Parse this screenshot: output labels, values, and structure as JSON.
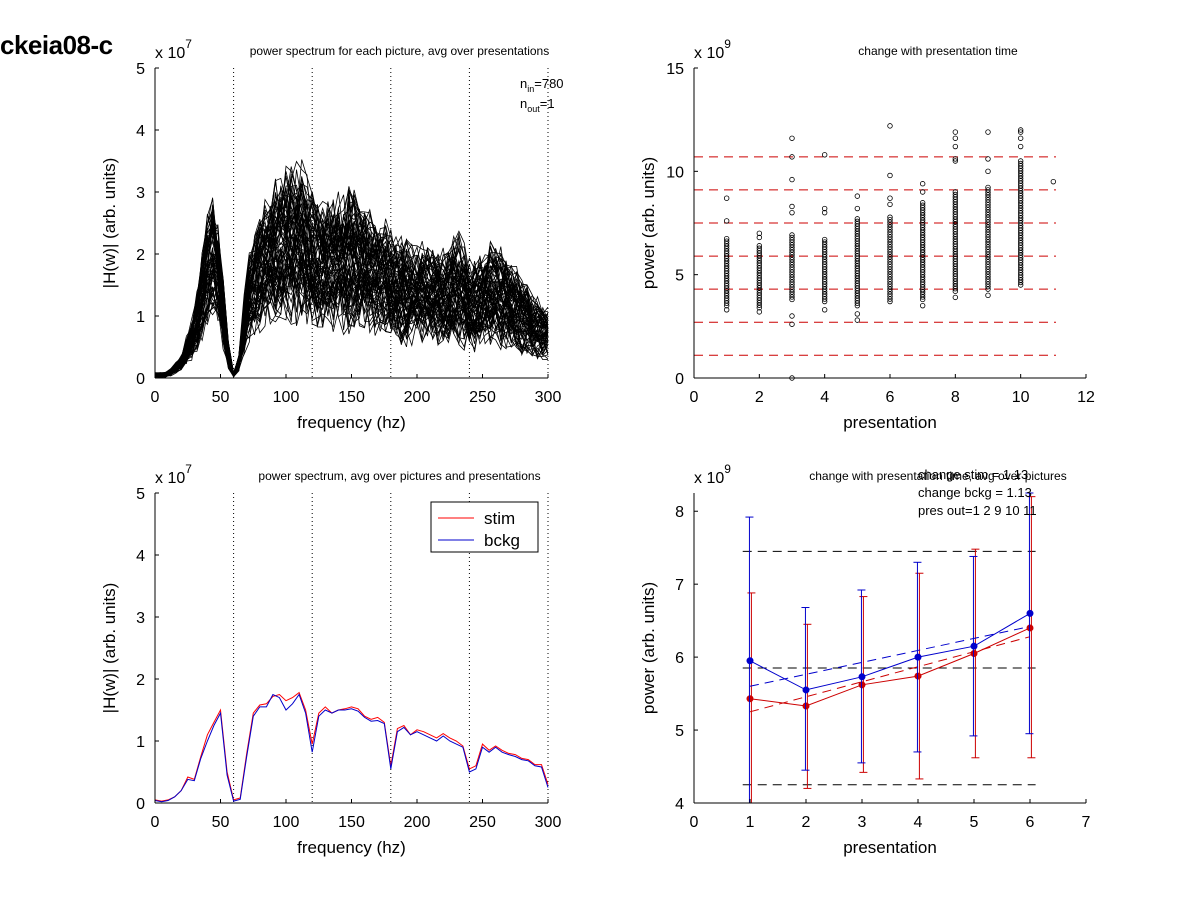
{
  "page_label": "ckeia08-c",
  "chart_data": [
    {
      "id": "p1",
      "type": "line",
      "title": "power spectrum for each picture, avg over presentations",
      "xlabel": "frequency (hz)",
      "ylabel": "|H(w)| (arb. units)",
      "exponent_label": "x 10",
      "exponent": "7",
      "xlim": [
        0,
        300
      ],
      "ylim": [
        0,
        5
      ],
      "xticks": [
        0,
        50,
        100,
        150,
        200,
        250,
        300
      ],
      "yticks": [
        0,
        1,
        2,
        3,
        4,
        5
      ],
      "vlines": [
        60,
        120,
        180,
        240,
        300
      ],
      "annotations": [
        {
          "main": "n",
          "sub": "in",
          "rest": "=780"
        },
        {
          "main": "n",
          "sub": "out",
          "rest": "=1"
        }
      ],
      "envelope": {
        "x": [
          0,
          10,
          20,
          30,
          40,
          45,
          50,
          55,
          60,
          65,
          70,
          80,
          90,
          100,
          110,
          120,
          130,
          140,
          150,
          160,
          170,
          180,
          190,
          200,
          210,
          220,
          230,
          240,
          250,
          260,
          270,
          280,
          290,
          300
        ],
        "upper": [
          0.1,
          0.1,
          0.4,
          1.2,
          2.8,
          3.2,
          2.4,
          0.8,
          0.1,
          0.5,
          2.0,
          2.9,
          3.3,
          3.6,
          3.9,
          3.3,
          3.0,
          3.2,
          3.4,
          3.0,
          2.8,
          2.6,
          2.4,
          2.3,
          2.3,
          2.2,
          2.6,
          2.1,
          2.2,
          2.4,
          2.0,
          1.8,
          1.4,
          1.2
        ],
        "lower": [
          0.0,
          0.0,
          0.1,
          0.2,
          0.6,
          0.8,
          0.5,
          0.1,
          0.0,
          0.1,
          0.4,
          0.5,
          0.7,
          0.6,
          0.5,
          0.3,
          0.5,
          0.5,
          0.4,
          0.5,
          0.5,
          0.4,
          0.3,
          0.4,
          0.4,
          0.3,
          0.3,
          0.2,
          0.3,
          0.3,
          0.3,
          0.2,
          0.2,
          0.2
        ]
      }
    },
    {
      "id": "p2",
      "type": "scatter",
      "title": "change with presentation time",
      "xlabel": "presentation",
      "ylabel": "power (arb. units)",
      "exponent_label": "x 10",
      "exponent": "9",
      "xlim": [
        0,
        12
      ],
      "ylim": [
        0,
        15
      ],
      "xticks": [
        0,
        2,
        4,
        6,
        8,
        10,
        12
      ],
      "yticks": [
        0,
        5,
        10,
        15
      ],
      "hlines": [
        1.1,
        2.7,
        4.3,
        5.9,
        7.5,
        9.1,
        10.7
      ],
      "columns": [
        {
          "x": 1,
          "lo": 3.5,
          "hi": 6.8,
          "outliers": [
            3.3,
            7.6,
            8.7
          ]
        },
        {
          "x": 2,
          "lo": 3.4,
          "hi": 6.5,
          "outliers": [
            3.2,
            6.8,
            7.0
          ]
        },
        {
          "x": 3,
          "lo": 3.8,
          "hi": 7.0,
          "outliers": [
            0.0,
            2.6,
            3.0,
            8.0,
            8.3,
            9.6,
            10.7,
            11.6
          ]
        },
        {
          "x": 4,
          "lo": 3.7,
          "hi": 6.8,
          "outliers": [
            3.3,
            8.0,
            8.2,
            10.8
          ]
        },
        {
          "x": 5,
          "lo": 3.5,
          "hi": 7.8,
          "outliers": [
            2.8,
            3.1,
            8.2,
            8.8
          ]
        },
        {
          "x": 6,
          "lo": 3.7,
          "hi": 7.8,
          "outliers": [
            8.4,
            8.7,
            9.8,
            12.2
          ]
        },
        {
          "x": 7,
          "lo": 3.8,
          "hi": 8.5,
          "outliers": [
            3.5,
            9.0,
            9.4
          ]
        },
        {
          "x": 8,
          "lo": 4.2,
          "hi": 9.0,
          "outliers": [
            3.9,
            10.5,
            10.6,
            11.2,
            11.6,
            11.9
          ]
        },
        {
          "x": 9,
          "lo": 4.3,
          "hi": 9.3,
          "outliers": [
            4.0,
            10.0,
            10.6,
            11.9
          ]
        },
        {
          "x": 10,
          "lo": 4.5,
          "hi": 10.5,
          "outliers": [
            11.2,
            11.6,
            11.9,
            12.0
          ]
        },
        {
          "x": 11,
          "lo": 9.5,
          "hi": 9.5,
          "outliers": []
        }
      ]
    },
    {
      "id": "p3",
      "type": "line",
      "title": "power spectrum, avg over pictures and presentations",
      "xlabel": "frequency (hz)",
      "ylabel": "|H(w)| (arb. units)",
      "exponent_label": "x 10",
      "exponent": "7",
      "xlim": [
        0,
        300
      ],
      "ylim": [
        0,
        5
      ],
      "xticks": [
        0,
        50,
        100,
        150,
        200,
        250,
        300
      ],
      "yticks": [
        0,
        1,
        2,
        3,
        4,
        5
      ],
      "vlines": [
        60,
        120,
        180,
        240,
        300
      ],
      "legend": {
        "position": "top-right",
        "entries": [
          {
            "name": "stim",
            "color": "#ff0000"
          },
          {
            "name": "bckg",
            "color": "#0000cc"
          }
        ]
      },
      "x": [
        0,
        5,
        10,
        15,
        20,
        25,
        30,
        35,
        40,
        45,
        50,
        55,
        60,
        65,
        70,
        75,
        80,
        85,
        90,
        95,
        100,
        105,
        110,
        115,
        120,
        125,
        130,
        135,
        140,
        145,
        150,
        155,
        160,
        165,
        170,
        175,
        180,
        185,
        190,
        195,
        200,
        205,
        210,
        215,
        220,
        225,
        230,
        235,
        240,
        245,
        250,
        255,
        260,
        265,
        270,
        275,
        280,
        285,
        290,
        295,
        300
      ],
      "series": [
        {
          "name": "stim",
          "color": "#ff0000",
          "values": [
            0.05,
            0.03,
            0.05,
            0.1,
            0.2,
            0.42,
            0.38,
            0.75,
            1.1,
            1.3,
            1.5,
            0.5,
            0.05,
            0.08,
            0.8,
            1.45,
            1.58,
            1.6,
            1.72,
            1.75,
            1.65,
            1.7,
            1.78,
            1.5,
            0.95,
            1.45,
            1.55,
            1.45,
            1.5,
            1.52,
            1.55,
            1.52,
            1.4,
            1.35,
            1.38,
            1.3,
            0.6,
            1.2,
            1.25,
            1.1,
            1.18,
            1.15,
            1.1,
            1.05,
            1.12,
            1.05,
            1.0,
            0.92,
            0.55,
            0.6,
            0.95,
            0.85,
            0.92,
            0.85,
            0.8,
            0.78,
            0.72,
            0.7,
            0.62,
            0.62,
            0.3
          ]
        },
        {
          "name": "bckg",
          "color": "#0000cc",
          "values": [
            0.04,
            0.02,
            0.04,
            0.1,
            0.2,
            0.38,
            0.36,
            0.72,
            1.0,
            1.25,
            1.45,
            0.45,
            0.03,
            0.06,
            0.75,
            1.4,
            1.55,
            1.55,
            1.75,
            1.7,
            1.5,
            1.6,
            1.75,
            1.45,
            0.82,
            1.4,
            1.5,
            1.45,
            1.5,
            1.5,
            1.52,
            1.48,
            1.38,
            1.32,
            1.33,
            1.28,
            0.55,
            1.15,
            1.22,
            1.1,
            1.15,
            1.1,
            1.05,
            1.0,
            1.08,
            1.0,
            0.95,
            0.9,
            0.5,
            0.55,
            0.9,
            0.82,
            0.9,
            0.82,
            0.78,
            0.75,
            0.7,
            0.68,
            0.6,
            0.58,
            0.25
          ]
        }
      ]
    },
    {
      "id": "p4",
      "type": "line",
      "title": "change with presentation time, avg over pictures",
      "xlabel": "presentation",
      "ylabel": "power (arb. units)",
      "exponent_label": "x 10",
      "exponent": "9",
      "xlim": [
        0,
        7
      ],
      "ylim": [
        4,
        8.25
      ],
      "xticks": [
        0,
        1,
        2,
        3,
        4,
        5,
        6,
        7
      ],
      "yticks": [
        4,
        5,
        6,
        7,
        8
      ],
      "annotations": [
        "change stim = 1.13",
        "change bckg = 1.13",
        "pres out=1 2 9 10 11"
      ],
      "hlines": [
        4.25,
        5.85,
        7.45
      ],
      "x": [
        1,
        2,
        3,
        4,
        5,
        6
      ],
      "series": [
        {
          "name": "stim",
          "color": "#cc0000",
          "values": [
            5.43,
            5.33,
            5.62,
            5.74,
            6.05,
            6.4
          ],
          "err_lo": [
            4.0,
            4.2,
            4.42,
            4.33,
            4.62,
            4.62
          ],
          "err_hi": [
            6.88,
            6.45,
            6.83,
            7.15,
            7.48,
            8.2
          ],
          "fit": [
            5.25,
            6.28
          ]
        },
        {
          "name": "bckg",
          "color": "#0000cc",
          "values": [
            5.95,
            5.55,
            5.73,
            6.0,
            6.15,
            6.6
          ],
          "err_lo": [
            4.0,
            4.45,
            4.55,
            4.7,
            4.92,
            4.95
          ],
          "err_hi": [
            7.92,
            6.68,
            6.92,
            7.3,
            7.38,
            8.25
          ],
          "fit": [
            5.6,
            6.42
          ]
        }
      ]
    }
  ]
}
